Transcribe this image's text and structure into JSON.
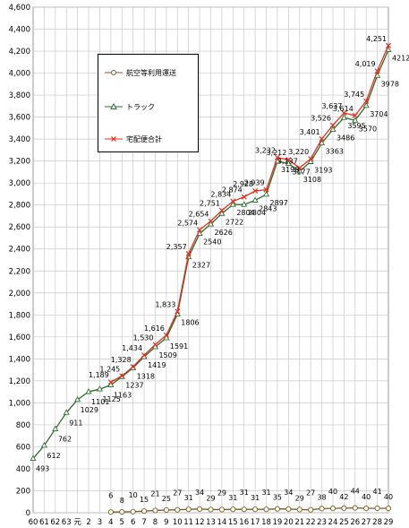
{
  "chart_data": {
    "type": "line",
    "categories": [
      "60",
      "61",
      "62",
      "63",
      "元",
      "2",
      "3",
      "4",
      "5",
      "6",
      "7",
      "8",
      "9",
      "10",
      "11",
      "12",
      "13",
      "14",
      "15",
      "16",
      "17",
      "18",
      "19",
      "20",
      "21",
      "22",
      "23",
      "24",
      "25",
      "26",
      "27",
      "28",
      "29"
    ],
    "ylim": [
      0,
      4600
    ],
    "yticks": [
      "0",
      "200",
      "400",
      "600",
      "800",
      "1,000",
      "1,200",
      "1,400",
      "1,600",
      "1,800",
      "2,000",
      "2,200",
      "2,400",
      "2,600",
      "2,800",
      "3,000",
      "3,200",
      "3,400",
      "3,600",
      "3,800",
      "4,000",
      "4,200",
      "4,400",
      "4,600"
    ],
    "grid": true,
    "legend_position": "top-left",
    "series": [
      {
        "name": "航空等利用運送",
        "color": "#7a5a3a",
        "marker": "circle",
        "values": [
          null,
          null,
          null,
          null,
          null,
          null,
          null,
          6,
          8,
          10,
          15,
          21,
          25,
          27,
          31,
          34,
          29,
          29,
          31,
          31,
          31,
          31,
          35,
          34,
          29,
          27,
          38,
          40,
          42,
          44,
          40,
          41,
          40
        ],
        "labels": [
          null,
          null,
          null,
          null,
          null,
          null,
          null,
          "6",
          "8",
          "10",
          "15",
          "21",
          "25",
          "27",
          "31",
          "34",
          "29",
          "29",
          "31",
          "31",
          "31",
          "31",
          "35",
          "34",
          "29",
          "27",
          "38",
          "40",
          "42",
          "44",
          "40",
          "41",
          "40"
        ]
      },
      {
        "name": "トラック",
        "color": "#2e6b2e",
        "marker": "triangle",
        "values": [
          493,
          612,
          762,
          911,
          1029,
          1101,
          1125,
          1163,
          1237,
          1318,
          1419,
          1509,
          1591,
          1806,
          2327,
          2540,
          2626,
          2722,
          2804,
          2804,
          2843,
          2897,
          3198,
          3177,
          3108,
          3193,
          3363,
          3486,
          3595,
          3570,
          3704,
          3978,
          4212
        ],
        "labels": [
          "493",
          "612",
          "762",
          "911",
          "1029",
          "1101",
          "1125",
          "1163",
          "1237",
          "1318",
          "1419",
          "1509",
          "1591",
          "1806",
          "2327",
          "2540",
          "2626",
          "2722",
          "2804",
          "2804",
          "2843",
          "2897",
          "3198",
          "3177",
          "3108",
          "3193",
          "3363",
          "3486",
          "3595",
          "3570",
          "3704",
          "3978",
          "4212"
        ]
      },
      {
        "name": "宅配便合計",
        "color": "#e03020",
        "marker": "cross",
        "values": [
          null,
          null,
          null,
          null,
          null,
          null,
          null,
          1189,
          1245,
          1328,
          1434,
          1530,
          1616,
          1833,
          2357,
          2574,
          2654,
          2751,
          2834,
          2874,
          2928,
          2939,
          3232,
          3212,
          3137,
          3220,
          3401,
          3526,
          3637,
          3614,
          3745,
          4019,
          4251
        ],
        "labels": [
          null,
          null,
          null,
          null,
          null,
          null,
          null,
          "1,189",
          "1,245",
          "1,328",
          "1,434",
          "1,530",
          "1,616",
          "1,833",
          "2,357",
          "2,574",
          "2,654",
          "2,751",
          "2,834",
          "2,874",
          "2,928",
          "2,939",
          "3,232",
          "3,212",
          "3,137",
          "3,220",
          "3,401",
          "3,526",
          "3,637",
          "3,614",
          "3,745",
          "4,019",
          "4,251"
        ]
      }
    ]
  },
  "legend": {
    "items": [
      {
        "label": "航空等利用運送",
        "icon": "circle-marker"
      },
      {
        "label": "トラック",
        "icon": "triangle-marker"
      },
      {
        "label": "宅配便合計",
        "icon": "cross-marker"
      }
    ]
  }
}
